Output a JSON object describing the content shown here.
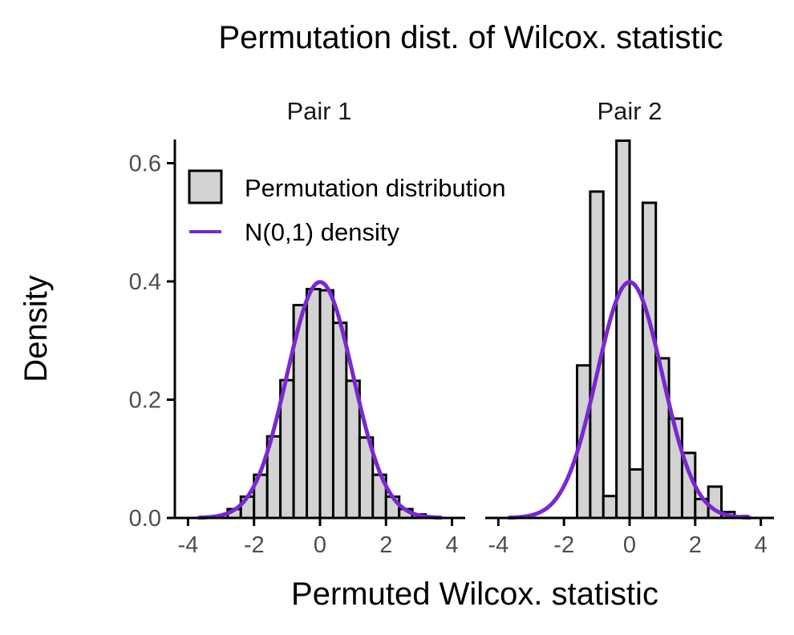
{
  "chart_data": {
    "type": "bar",
    "title": "Permutation dist. of Wilcox. statistic",
    "xlabel": "Permuted Wilcox. statistic",
    "ylabel": "Density",
    "xlim": [
      -4.4,
      4.4
    ],
    "ylim": [
      0,
      0.64
    ],
    "xticks": [
      "-4",
      "-2",
      "0",
      "2",
      "4"
    ],
    "yticks": [
      "0.0",
      "0.2",
      "0.4",
      "0.6"
    ],
    "grid": false,
    "legend_position": "top-left",
    "colors": {
      "bar_fill": "#d3d3d3",
      "bar_edge": "#000000",
      "curve": "#7a28d0"
    },
    "legend": [
      {
        "label": "Permutation distribution",
        "kind": "histogram"
      },
      {
        "label": "N(0,1) density",
        "kind": "line"
      }
    ],
    "curve": {
      "name": "N(0,1) density",
      "mean": 0,
      "sd": 1
    },
    "panels": [
      {
        "label": "Pair 1",
        "bin_width": 0.4,
        "bins": [
          {
            "x0": -2.8,
            "x1": -2.4,
            "density": 0.015
          },
          {
            "x0": -2.4,
            "x1": -2.0,
            "density": 0.036
          },
          {
            "x0": -2.0,
            "x1": -1.6,
            "density": 0.073
          },
          {
            "x0": -1.6,
            "x1": -1.2,
            "density": 0.138
          },
          {
            "x0": -1.2,
            "x1": -0.8,
            "density": 0.233
          },
          {
            "x0": -0.8,
            "x1": -0.4,
            "density": 0.36
          },
          {
            "x0": -0.4,
            "x1": 0.0,
            "density": 0.387
          },
          {
            "x0": 0.0,
            "x1": 0.4,
            "density": 0.385
          },
          {
            "x0": 0.4,
            "x1": 0.8,
            "density": 0.33
          },
          {
            "x0": 0.8,
            "x1": 1.2,
            "density": 0.232
          },
          {
            "x0": 1.2,
            "x1": 1.6,
            "density": 0.136
          },
          {
            "x0": 1.6,
            "x1": 2.0,
            "density": 0.073
          },
          {
            "x0": 2.0,
            "x1": 2.4,
            "density": 0.036
          },
          {
            "x0": 2.4,
            "x1": 2.8,
            "density": 0.015
          },
          {
            "x0": 2.8,
            "x1": 3.2,
            "density": 0.006
          },
          {
            "x0": 3.2,
            "x1": 3.6,
            "density": 0.002
          }
        ]
      },
      {
        "label": "Pair 2",
        "bin_width": 0.4,
        "bins": [
          {
            "x0": -1.6,
            "x1": -1.2,
            "density": 0.258
          },
          {
            "x0": -1.2,
            "x1": -0.8,
            "density": 0.552
          },
          {
            "x0": -0.8,
            "x1": -0.4,
            "density": 0.037
          },
          {
            "x0": -0.4,
            "x1": 0.0,
            "density": 0.638
          },
          {
            "x0": 0.0,
            "x1": 0.4,
            "density": 0.082
          },
          {
            "x0": 0.4,
            "x1": 0.8,
            "density": 0.533
          },
          {
            "x0": 0.8,
            "x1": 1.2,
            "density": 0.27
          },
          {
            "x0": 1.2,
            "x1": 1.6,
            "density": 0.168
          },
          {
            "x0": 1.6,
            "x1": 2.0,
            "density": 0.11
          },
          {
            "x0": 2.0,
            "x1": 2.4,
            "density": 0.032
          },
          {
            "x0": 2.4,
            "x1": 2.8,
            "density": 0.053
          },
          {
            "x0": 2.8,
            "x1": 3.2,
            "density": 0.01
          },
          {
            "x0": 3.2,
            "x1": 3.6,
            "density": 0.003
          }
        ]
      }
    ]
  }
}
